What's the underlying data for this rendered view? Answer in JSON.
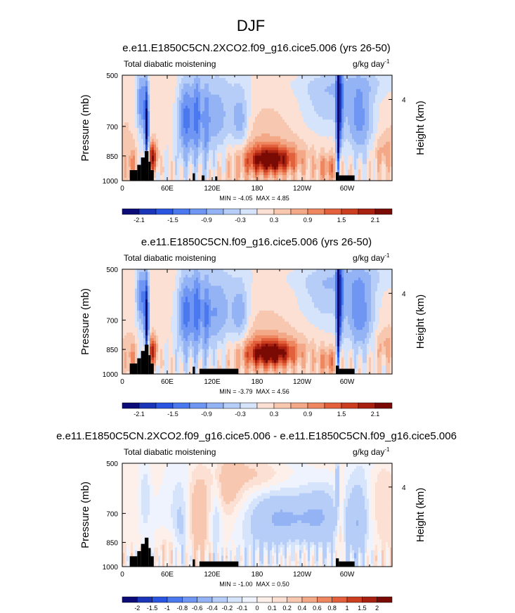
{
  "figure_title": "DJF",
  "chart_data": [
    {
      "type": "heatmap",
      "title": "e.e11.E1850C5CN.2XCO2.f09_g16.cice5.006 (yrs 26-50)",
      "left_label": "Total diabatic moistening",
      "units": "g/kg day",
      "units_exp": "-1",
      "ylabel": "Pressure (mb)",
      "right_label": "Height (km)",
      "right_ticks": [
        "4"
      ],
      "x_ticks": [
        "0",
        "60E",
        "120E",
        "180",
        "120W",
        "60W"
      ],
      "y_ticks": [
        "500",
        "700",
        "850",
        "1000"
      ],
      "min_label": "MIN = ",
      "min_value": "-4.05",
      "max_label": "MAX = ",
      "max_value": "4.85",
      "colorbar_labels": [
        "-2.1",
        "-1.5",
        "-0.9",
        "-0.3",
        "0.3",
        "0.9",
        "1.5",
        "2.1"
      ],
      "colorbar_colors": [
        "#0c0c78",
        "#1a35b8",
        "#2a55e0",
        "#4a78ee",
        "#6e96f2",
        "#93b3f5",
        "#b6cdf8",
        "#d6e4fb",
        "#fbe0d3",
        "#f7c7b0",
        "#f3a888",
        "#ee8660",
        "#e2603c",
        "#cc3e20",
        "#a82010",
        "#7a0a04"
      ],
      "colorbar_bounds": [
        -2.1,
        2.1
      ],
      "features": {
        "pacific_max": 1.9,
        "africa_max": 1.9,
        "andes_min": -2.3,
        "tibet_min": -1.3,
        "wpac_min": -0.9,
        "amazon_min": -1.1,
        "bg_level": 0.3
      }
    },
    {
      "type": "heatmap",
      "title": "e.e11.E1850C5CN.f09_g16.cice5.006 (yrs 26-50)",
      "left_label": "Total diabatic moistening",
      "units": "g/kg day",
      "units_exp": "-1",
      "ylabel": "Pressure (mb)",
      "right_label": "Height (km)",
      "right_ticks": [
        "4"
      ],
      "x_ticks": [
        "0",
        "60E",
        "120E",
        "180",
        "120W",
        "60W"
      ],
      "y_ticks": [
        "500",
        "700",
        "850",
        "1000"
      ],
      "min_label": "MIN = ",
      "min_value": "-3.79",
      "max_label": "MAX = ",
      "max_value": "4.56",
      "colorbar_labels": [
        "-2.1",
        "-1.5",
        "-0.9",
        "-0.3",
        "0.3",
        "0.9",
        "1.5",
        "2.1"
      ],
      "colorbar_colors": [
        "#0c0c78",
        "#1a35b8",
        "#2a55e0",
        "#4a78ee",
        "#6e96f2",
        "#93b3f5",
        "#b6cdf8",
        "#d6e4fb",
        "#fbe0d3",
        "#f7c7b0",
        "#f3a888",
        "#ee8660",
        "#e2603c",
        "#cc3e20",
        "#a82010",
        "#7a0a04"
      ],
      "colorbar_bounds": [
        -2.1,
        2.1
      ],
      "features": {
        "pacific_max": 2.0,
        "africa_max": 1.8,
        "andes_min": -2.3,
        "tibet_min": -1.3,
        "wpac_min": -1.0,
        "amazon_min": -1.2,
        "bg_level": 0.25
      }
    },
    {
      "type": "heatmap",
      "title": "e.e11.E1850C5CN.2XCO2.f09_g16.cice5.006 - e.e11.E1850C5CN.f09_g16.cice5.006",
      "left_label": "Total diabatic moistening",
      "units": "g/kg day",
      "units_exp": "-1",
      "ylabel": "Pressure (mb)",
      "right_label": "Height (km)",
      "right_ticks": [
        "4"
      ],
      "x_ticks": [
        "0",
        "60E",
        "120E",
        "180",
        "120W",
        "60W"
      ],
      "y_ticks": [
        "500",
        "700",
        "850",
        "1000"
      ],
      "min_label": "MIN = ",
      "min_value": "-1.00",
      "max_label": "MAX = ",
      "max_value": "0.50",
      "colorbar_labels": [
        "-2",
        "-1.5",
        "-1",
        "-0.8",
        "-0.6",
        "-0.4",
        "-0.2",
        "-0.1",
        "0",
        "0.1",
        "0.2",
        "0.4",
        "0.6",
        "0.8",
        "1",
        "1.5",
        "2"
      ],
      "colorbar_colors": [
        "#0c0c78",
        "#1a35b8",
        "#2a55e0",
        "#4a78ee",
        "#6e96f2",
        "#93b3f5",
        "#b6cdf8",
        "#d6e4fb",
        "#eef3fd",
        "#fdf0ea",
        "#fbe0d3",
        "#f7c7b0",
        "#f3a888",
        "#ee8660",
        "#e2603c",
        "#cc3e20",
        "#a82010",
        "#7a0a04"
      ],
      "colorbar_bounds": [
        -2,
        2
      ],
      "features": {
        "diff": true
      }
    }
  ]
}
